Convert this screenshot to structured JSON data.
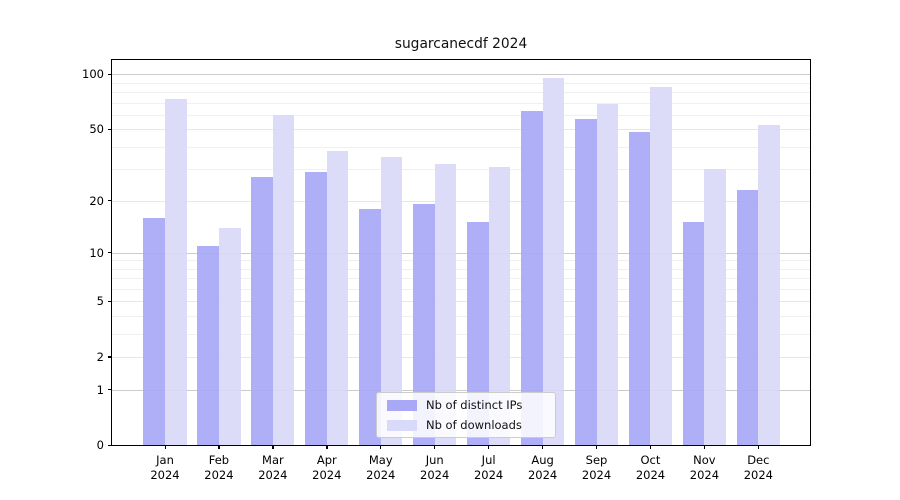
{
  "chart_data": {
    "type": "bar",
    "title": "sugarcanecdf 2024",
    "months": [
      "Jan",
      "Feb",
      "Mar",
      "Apr",
      "May",
      "Jun",
      "Jul",
      "Aug",
      "Sep",
      "Oct",
      "Nov",
      "Dec"
    ],
    "year": "2024",
    "series": [
      {
        "name": "Nb of distinct IPs",
        "color": "#a8a8f6",
        "values": [
          16,
          11,
          27,
          29,
          18,
          19,
          15,
          63,
          57,
          48,
          15,
          23
        ]
      },
      {
        "name": "Nb of downloads",
        "color": "#d9d9f9",
        "values": [
          73,
          14,
          60,
          38,
          35,
          32,
          31,
          96,
          69,
          85,
          30,
          53
        ]
      }
    ],
    "yscale": "log1p",
    "yticks": [
      0,
      1,
      2,
      5,
      10,
      20,
      50,
      100
    ],
    "major_yticks": [
      1,
      10,
      100
    ],
    "minor_yticks": [
      3,
      4,
      6,
      7,
      8,
      9,
      30,
      40,
      60,
      70,
      80,
      90
    ],
    "ylim": [
      0,
      119
    ],
    "grid": "on",
    "legend_position": "lower center",
    "colors": {
      "major_grid": "#cbcbcb",
      "mid_grid": "#e7e7e7",
      "minor_grid": "#f0f0f0"
    }
  }
}
